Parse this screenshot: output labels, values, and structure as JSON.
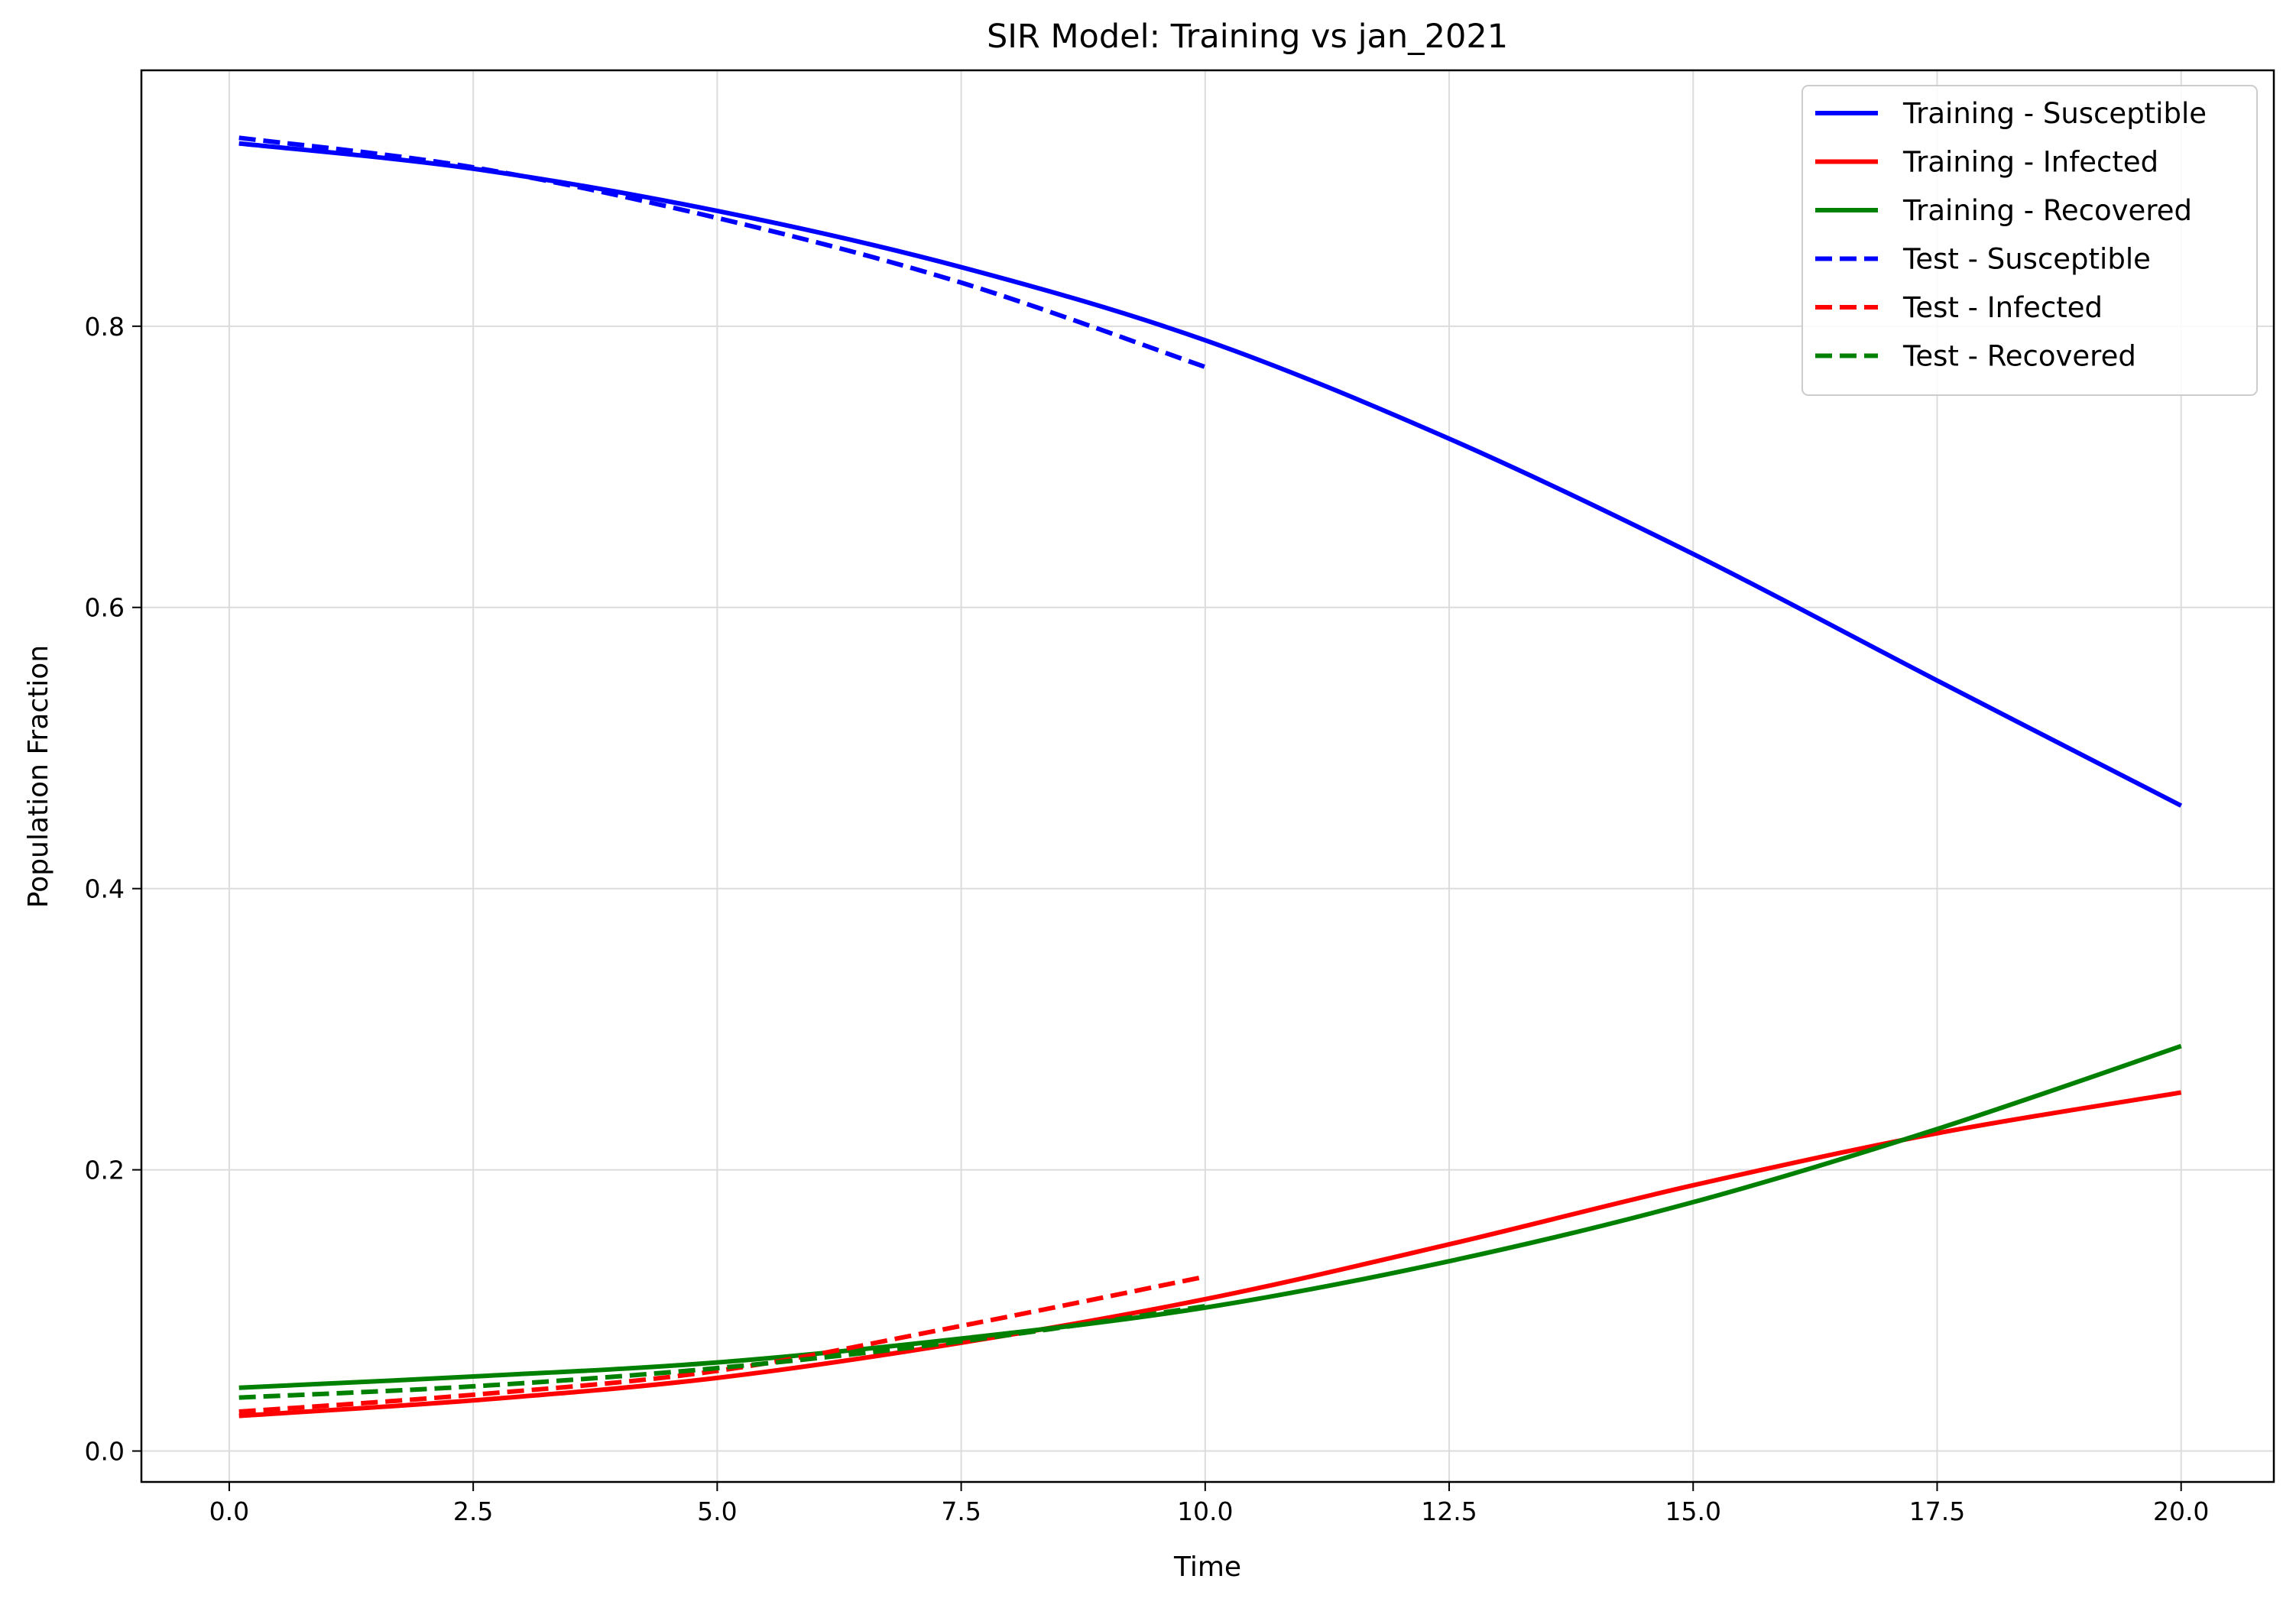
{
  "chart_data": {
    "type": "line",
    "title": "SIR Model: Training vs jan_2021",
    "xlabel": "Time",
    "ylabel": "Population Fraction",
    "xlim": [
      -0.9,
      20.95
    ],
    "ylim": [
      -0.022,
      0.982
    ],
    "grid": true,
    "legend_position": "top-right",
    "x_ticks": [
      0.0,
      2.5,
      5.0,
      7.5,
      10.0,
      12.5,
      15.0,
      17.5,
      20.0
    ],
    "x_tick_labels": [
      "0.0",
      "2.5",
      "5.0",
      "7.5",
      "10.0",
      "12.5",
      "15.0",
      "17.5",
      "20.0"
    ],
    "y_ticks": [
      0.0,
      0.2,
      0.4,
      0.6,
      0.8
    ],
    "y_tick_labels": [
      "0.0",
      "0.2",
      "0.4",
      "0.6",
      "0.8"
    ],
    "series": [
      {
        "name": "Training - Susceptible",
        "color": "#0000ff",
        "style": "solid",
        "x": [
          0.1,
          2.5,
          5.0,
          7.5,
          10.0,
          12.5,
          15.0,
          17.5,
          20.0
        ],
        "y": [
          0.93,
          0.912,
          0.882,
          0.842,
          0.79,
          0.72,
          0.638,
          0.548,
          0.459
        ]
      },
      {
        "name": "Training - Infected",
        "color": "#ff0000",
        "style": "solid",
        "x": [
          0.1,
          2.5,
          5.0,
          7.5,
          10.0,
          12.5,
          15.0,
          17.5,
          20.0
        ],
        "y": [
          0.025,
          0.036,
          0.052,
          0.077,
          0.108,
          0.147,
          0.189,
          0.226,
          0.255
        ]
      },
      {
        "name": "Training - Recovered",
        "color": "#008000",
        "style": "solid",
        "x": [
          0.1,
          2.5,
          5.0,
          7.5,
          10.0,
          12.5,
          15.0,
          17.5,
          20.0
        ],
        "y": [
          0.045,
          0.053,
          0.063,
          0.08,
          0.102,
          0.135,
          0.177,
          0.229,
          0.288
        ]
      },
      {
        "name": "Test - Susceptible",
        "color": "#0000ff",
        "style": "dashed",
        "x": [
          0.1,
          2.5,
          5.0,
          7.5,
          10.0
        ],
        "y": [
          0.934,
          0.913,
          0.877,
          0.831,
          0.771
        ]
      },
      {
        "name": "Test - Infected",
        "color": "#ff0000",
        "style": "dashed",
        "x": [
          0.1,
          2.5,
          5.0,
          7.5,
          10.0
        ],
        "y": [
          0.028,
          0.04,
          0.057,
          0.089,
          0.124
        ]
      },
      {
        "name": "Test - Recovered",
        "color": "#008000",
        "style": "dashed",
        "x": [
          0.1,
          2.5,
          5.0,
          7.5,
          10.0
        ],
        "y": [
          0.038,
          0.046,
          0.059,
          0.078,
          0.103
        ]
      }
    ]
  }
}
